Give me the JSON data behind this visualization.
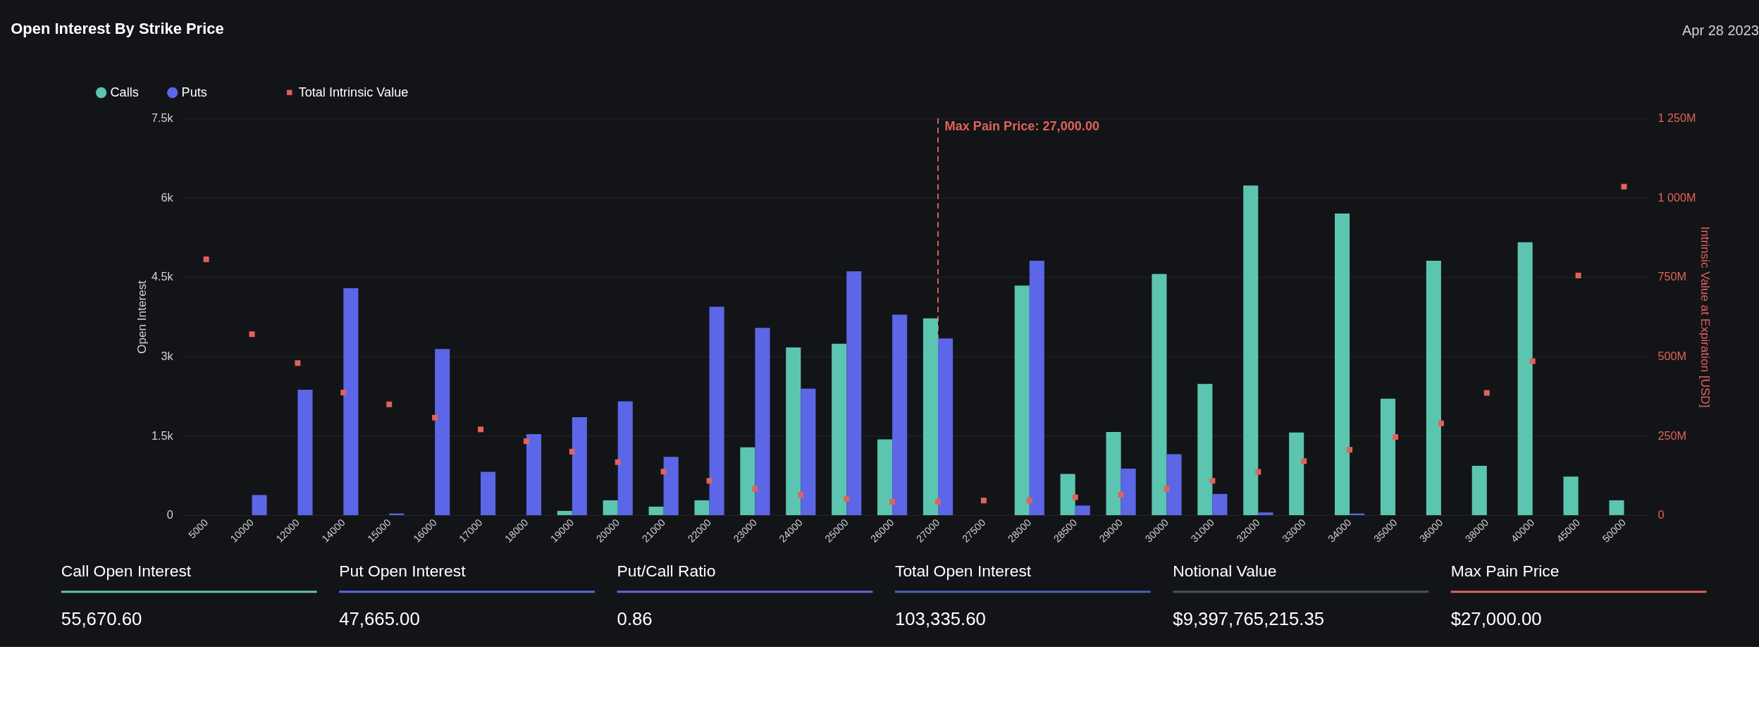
{
  "chart_data": [
    {
      "type": "bar",
      "title": "Open Interest By Strike Price",
      "annotations": [
        "Apr 28 2023"
      ],
      "ylabel": "Open Interest",
      "y2label": "Intrinsic Value at Expiration [USD]",
      "categories": [
        "5000",
        "10000",
        "12000",
        "14000",
        "15000",
        "16000",
        "17000",
        "18000",
        "19000",
        "20000",
        "21000",
        "22000",
        "23000",
        "24000",
        "25000",
        "26000",
        "27000",
        "27500",
        "28000",
        "28500",
        "29000",
        "30000",
        "31000",
        "32000",
        "33000",
        "34000",
        "35000",
        "36000",
        "38000",
        "40000",
        "45000",
        "50000"
      ],
      "series": [
        {
          "name": "Calls",
          "color": "#5cc5b0",
          "values": [
            0,
            0,
            0,
            0,
            0,
            0,
            0,
            0,
            80,
            280,
            160,
            280,
            1280,
            3170,
            3240,
            1430,
            3720,
            0,
            4340,
            780,
            1570,
            4560,
            2480,
            6230,
            1560,
            5700,
            2200,
            4810,
            930,
            5160,
            730,
            280
          ]
        },
        {
          "name": "Puts",
          "color": "#5b67e6",
          "values": [
            0,
            380,
            2370,
            4290,
            30,
            3140,
            820,
            1530,
            1850,
            2150,
            1100,
            3940,
            3540,
            2390,
            4610,
            3790,
            3340,
            0,
            4810,
            180,
            880,
            1150,
            400,
            50,
            0,
            30,
            0,
            0,
            0,
            0,
            0,
            0
          ]
        },
        {
          "name": "Total Intrinsic Value",
          "type": "scatter",
          "axis": "y2",
          "color": "#e0635a",
          "values": [
            806000000,
            570000000,
            479000000,
            386000000,
            349000000,
            307000000,
            270000000,
            233000000,
            200000000,
            167000000,
            137000000,
            108000000,
            83000000,
            63000000,
            51000000,
            42000000,
            42000000,
            46000000,
            46000000,
            56000000,
            64000000,
            83000000,
            108000000,
            136000000,
            170000000,
            206000000,
            246000000,
            289000000,
            385000000,
            485000000,
            755000000,
            1035000000
          ]
        }
      ],
      "ylim": [
        0,
        7500
      ],
      "yticks": [
        {
          "value": 0,
          "label": "0"
        },
        {
          "value": 1500,
          "label": "1.5k"
        },
        {
          "value": 3000,
          "label": "3k"
        },
        {
          "value": 4500,
          "label": "4.5k"
        },
        {
          "value": 6000,
          "label": "6k"
        },
        {
          "value": 7500,
          "label": "7.5k"
        }
      ],
      "y2lim": [
        0,
        1250000000
      ],
      "y2ticks": [
        {
          "value": 0,
          "label": "0"
        },
        {
          "value": 250000000,
          "label": "250M"
        },
        {
          "value": 500000000,
          "label": "500M"
        },
        {
          "value": 750000000,
          "label": "750M"
        },
        {
          "value": 1000000000,
          "label": "1 000M"
        },
        {
          "value": 1250000000,
          "label": "1 250M"
        }
      ],
      "ref_lines": [
        {
          "axis": "x",
          "value": "27000",
          "label": "Max Pain Price: 27,000.00",
          "color": "#e0635a",
          "line_style": "dashed"
        }
      ],
      "grid": "y",
      "legend": "top left",
      "marker": "square"
    },
    {
      "type": "other",
      "categories": [
        "Call Open Interest",
        "Put Open Interest",
        "Put/Call Ratio",
        "Total Open Interest",
        "Notional Value",
        "Max Pain Price"
      ],
      "value_labels": [
        "55,670.60",
        "47,665.00",
        "0.86",
        "103,335.60",
        "$9,397,765,215.35",
        "$27,000.00"
      ],
      "colors": [
        "#5cc5b0",
        "#5b67e6",
        "#6a63d8",
        "#4a62b8",
        "#4a4f58",
        "#e0635a"
      ]
    }
  ]
}
